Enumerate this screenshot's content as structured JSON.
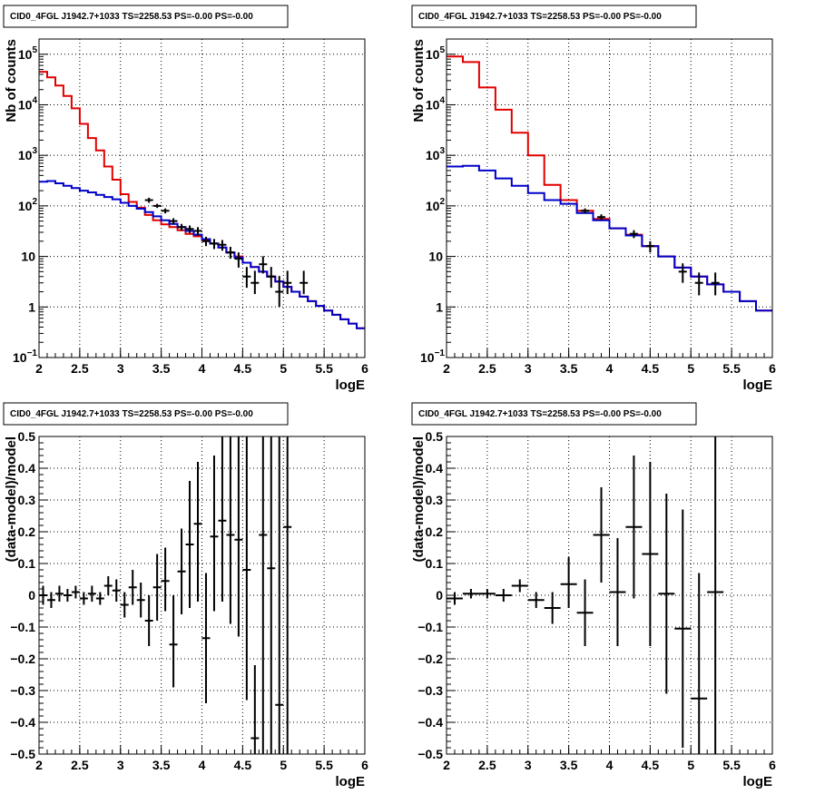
{
  "chart_data": [
    {
      "type": "line",
      "title": "CID0_4FGL J1942.7+1033 TS=2258.53 PS=-0.00 PS=-0.00",
      "xlabel": "logE",
      "ylabel": "Nb of counts",
      "xlim": [
        2,
        6
      ],
      "ylim": [
        0.1,
        200000
      ],
      "log_y": true,
      "grid": true,
      "x_ticks": [
        "2",
        "2.5",
        "3",
        "3.5",
        "4",
        "4.5",
        "5",
        "5.5",
        "6"
      ],
      "y_ticks": [
        {
          "value": 0.1,
          "label": "10",
          "sup": "−1"
        },
        {
          "value": 1,
          "label": "1",
          "sup": ""
        },
        {
          "value": 10,
          "label": "10",
          "sup": ""
        },
        {
          "value": 100,
          "label": "10",
          "sup": "2"
        },
        {
          "value": 1000,
          "label": "10",
          "sup": "3"
        },
        {
          "value": 10000,
          "label": "10",
          "sup": "4"
        },
        {
          "value": 100000,
          "label": "10",
          "sup": "5"
        }
      ],
      "bin_edges": [
        2.0,
        2.1,
        2.2,
        2.3,
        2.4,
        2.5,
        2.6,
        2.7,
        2.8,
        2.9,
        3.0,
        3.1,
        3.2,
        3.3,
        3.4,
        3.5,
        3.6,
        3.7,
        3.8,
        3.9,
        4.0,
        4.1,
        4.2,
        4.3,
        4.4,
        4.5,
        4.6,
        4.7,
        4.8,
        4.9,
        5.0,
        5.1,
        5.2,
        5.3,
        5.4,
        5.5,
        5.6,
        5.7,
        5.8,
        5.9,
        6.0
      ],
      "series": [
        {
          "color": "#e00000",
          "style": "step",
          "values": [
            45000,
            35000,
            24000,
            15000,
            8500,
            4200,
            2200,
            1250,
            600,
            330,
            170,
            120,
            92,
            66,
            52,
            43,
            38,
            33,
            28,
            25,
            21,
            18,
            15,
            12,
            10,
            7.5,
            6.2,
            5.0,
            4.0,
            3.2,
            2.5,
            2.0,
            1.6,
            1.3,
            1.05,
            0.85,
            0.7,
            0.57,
            0.47,
            0.38
          ]
        },
        {
          "color": "#0000c8",
          "style": "step",
          "values": [
            300,
            310,
            280,
            250,
            225,
            200,
            185,
            165,
            150,
            135,
            115,
            100,
            88,
            75,
            62,
            52,
            44,
            38,
            32,
            27,
            22,
            18,
            15,
            12,
            9.5,
            7.5,
            6.2,
            5.0,
            4.0,
            3.2,
            2.5,
            2.0,
            1.6,
            1.3,
            1.05,
            0.85,
            0.7,
            0.57,
            0.47,
            0.38
          ]
        },
        {
          "color": "#000000",
          "style": "errorbar",
          "x": [
            3.35,
            3.45,
            3.55,
            3.65,
            3.75,
            3.85,
            3.95,
            4.05,
            4.15,
            4.25,
            4.35,
            4.45,
            4.55,
            4.65,
            4.75,
            4.85,
            4.95,
            5.05,
            5.25
          ],
          "y": [
            130,
            100,
            80,
            50,
            38,
            35,
            32,
            20,
            18,
            17,
            12,
            9,
            4,
            3,
            7,
            4,
            2,
            3,
            3
          ],
          "yerr_lo": [
            115,
            91,
            71,
            43,
            32,
            29,
            26,
            16,
            14,
            13,
            9,
            6,
            2.4,
            1.8,
            4.6,
            2.4,
            1,
            1.8,
            1.8
          ],
          "yerr_hi": [
            145,
            110,
            89,
            57,
            44,
            41,
            38,
            24.5,
            22.2,
            21.1,
            15.5,
            12,
            6.2,
            5.2,
            10.1,
            6.2,
            4.1,
            5.2,
            5.2
          ]
        }
      ]
    },
    {
      "type": "line",
      "title": "CID0_4FGL J1942.7+1033 TS=2258.53 PS=-0.00 PS=-0.00",
      "xlabel": "logE",
      "ylabel": "Nb of counts",
      "xlim": [
        2,
        6
      ],
      "ylim": [
        0.1,
        200000
      ],
      "log_y": true,
      "grid": true,
      "x_ticks": [
        "2",
        "2.5",
        "3",
        "3.5",
        "4",
        "4.5",
        "5",
        "5.5",
        "6"
      ],
      "y_ticks": [
        {
          "value": 0.1,
          "label": "10",
          "sup": "−1"
        },
        {
          "value": 1,
          "label": "1",
          "sup": ""
        },
        {
          "value": 10,
          "label": "10",
          "sup": ""
        },
        {
          "value": 100,
          "label": "10",
          "sup": "2"
        },
        {
          "value": 1000,
          "label": "10",
          "sup": "3"
        },
        {
          "value": 10000,
          "label": "10",
          "sup": "4"
        },
        {
          "value": 100000,
          "label": "10",
          "sup": "5"
        }
      ],
      "bin_edges": [
        2.0,
        2.2,
        2.4,
        2.6,
        2.8,
        3.0,
        3.2,
        3.4,
        3.6,
        3.8,
        4.0,
        4.2,
        4.4,
        4.6,
        4.8,
        5.0,
        5.2,
        5.4,
        5.6,
        5.8,
        6.0
      ],
      "series": [
        {
          "color": "#e00000",
          "style": "step",
          "values": [
            90000,
            70000,
            22000,
            8000,
            2800,
            1000,
            260,
            130,
            80,
            55,
            36,
            27,
            16,
            10,
            6,
            4,
            2.8,
            2.0,
            1.3,
            0.85
          ]
        },
        {
          "color": "#0000c8",
          "style": "step",
          "values": [
            600,
            620,
            500,
            350,
            250,
            180,
            130,
            110,
            72,
            52,
            36,
            26,
            16,
            10,
            6,
            4,
            2.8,
            2.0,
            1.3,
            0.85
          ]
        },
        {
          "color": "#000000",
          "style": "errorbar",
          "x": [
            3.7,
            3.9,
            4.3,
            4.5,
            4.9,
            5.1,
            5.3
          ],
          "y": [
            80,
            60,
            28,
            16,
            5,
            3,
            3
          ],
          "yerr_lo": [
            71,
            52,
            23,
            12,
            3,
            1.7,
            1.7
          ],
          "yerr_hi": [
            89,
            68,
            33,
            20,
            7.3,
            4.8,
            4.8
          ]
        }
      ]
    },
    {
      "type": "scatter",
      "title": "CID0_4FGL J1942.7+1033 TS=2258.53 PS=-0.00 PS=-0.00",
      "xlabel": "logE",
      "ylabel": "(data-model)/model",
      "xlim": [
        2,
        6
      ],
      "ylim": [
        -0.5,
        0.5
      ],
      "log_y": false,
      "grid": true,
      "x_ticks": [
        "2",
        "2.5",
        "3",
        "3.5",
        "4",
        "4.5",
        "5",
        "5.5",
        "6"
      ],
      "y_ticks": [
        {
          "value": -0.5,
          "label": "−0.5",
          "sup": ""
        },
        {
          "value": -0.4,
          "label": "−0.4",
          "sup": ""
        },
        {
          "value": -0.3,
          "label": "−0.3",
          "sup": ""
        },
        {
          "value": -0.2,
          "label": "−0.2",
          "sup": ""
        },
        {
          "value": -0.1,
          "label": "−0.1",
          "sup": ""
        },
        {
          "value": 0,
          "label": "0",
          "sup": ""
        },
        {
          "value": 0.1,
          "label": "0.1",
          "sup": ""
        },
        {
          "value": 0.2,
          "label": "0.2",
          "sup": ""
        },
        {
          "value": 0.3,
          "label": "0.3",
          "sup": ""
        },
        {
          "value": 0.4,
          "label": "0.4",
          "sup": ""
        },
        {
          "value": 0.5,
          "label": "0.5",
          "sup": ""
        }
      ],
      "bin_width": 0.1,
      "series": [
        {
          "color": "#000000",
          "style": "errorbar",
          "x": [
            2.05,
            2.15,
            2.25,
            2.35,
            2.45,
            2.55,
            2.65,
            2.75,
            2.85,
            2.95,
            3.05,
            3.15,
            3.25,
            3.35,
            3.45,
            3.55,
            3.65,
            3.75,
            3.85,
            3.95,
            4.05,
            4.15,
            4.25,
            4.35,
            4.45,
            4.55,
            4.65,
            4.75,
            4.85,
            4.95,
            5.05
          ],
          "y": [
            0,
            -0.015,
            0.005,
            0,
            0.01,
            -0.01,
            0.005,
            -0.01,
            0.03,
            0.015,
            -0.03,
            0.025,
            -0.015,
            -0.08,
            0.025,
            0.045,
            -0.155,
            0.075,
            0.16,
            0.225,
            -0.135,
            0.185,
            0.235,
            0.19,
            0.175,
            0.08,
            -0.45,
            0.19,
            0.085,
            -0.345,
            0.215
          ],
          "yerr_lo": [
            -0.03,
            -0.04,
            -0.02,
            -0.02,
            -0.01,
            -0.03,
            -0.02,
            -0.03,
            0.0,
            -0.02,
            -0.07,
            -0.03,
            -0.07,
            -0.16,
            -0.08,
            -0.05,
            -0.29,
            -0.06,
            -0.04,
            -0.02,
            -0.34,
            -0.05,
            -0.02,
            -0.09,
            -0.13,
            -0.33,
            -0.5,
            -0.5,
            -0.5,
            -0.5,
            -0.5
          ],
          "yerr_hi": [
            0.03,
            0.01,
            0.03,
            0.02,
            0.03,
            0.01,
            0.03,
            0.01,
            0.06,
            0.05,
            0.01,
            0.08,
            0.04,
            0.0,
            0.13,
            0.15,
            0.0,
            0.21,
            0.36,
            0.42,
            0.07,
            0.44,
            0.5,
            0.5,
            0.5,
            0.5,
            -0.22,
            0.5,
            0.5,
            0.5,
            0.5
          ]
        }
      ]
    },
    {
      "type": "scatter",
      "title": "CID0_4FGL J1942.7+1033 TS=2258.53 PS=-0.00 PS=-0.00",
      "xlabel": "logE",
      "ylabel": "(data-model)/model",
      "xlim": [
        2,
        6
      ],
      "ylim": [
        -0.5,
        0.5
      ],
      "log_y": false,
      "grid": true,
      "x_ticks": [
        "2",
        "2.5",
        "3",
        "3.5",
        "4",
        "4.5",
        "5",
        "5.5",
        "6"
      ],
      "y_ticks": [
        {
          "value": -0.5,
          "label": "−0.5",
          "sup": ""
        },
        {
          "value": -0.4,
          "label": "−0.4",
          "sup": ""
        },
        {
          "value": -0.3,
          "label": "−0.3",
          "sup": ""
        },
        {
          "value": -0.2,
          "label": "−0.2",
          "sup": ""
        },
        {
          "value": -0.1,
          "label": "−0.1",
          "sup": ""
        },
        {
          "value": 0,
          "label": "0",
          "sup": ""
        },
        {
          "value": 0.1,
          "label": "0.1",
          "sup": ""
        },
        {
          "value": 0.2,
          "label": "0.2",
          "sup": ""
        },
        {
          "value": 0.3,
          "label": "0.3",
          "sup": ""
        },
        {
          "value": 0.4,
          "label": "0.4",
          "sup": ""
        },
        {
          "value": 0.5,
          "label": "0.5",
          "sup": ""
        }
      ],
      "bin_width": 0.2,
      "series": [
        {
          "color": "#000000",
          "style": "errorbar",
          "x": [
            2.1,
            2.3,
            2.5,
            2.7,
            2.9,
            3.1,
            3.3,
            3.5,
            3.7,
            3.9,
            4.1,
            4.3,
            4.5,
            4.7,
            4.9,
            5.1,
            5.3
          ],
          "y": [
            -0.01,
            0.005,
            0.005,
            0,
            0.03,
            -0.015,
            -0.04,
            0.035,
            -0.055,
            0.19,
            0.01,
            0.215,
            0.13,
            0.005,
            -0.105,
            -0.325,
            0.01
          ],
          "yerr_lo": [
            -0.03,
            -0.01,
            -0.01,
            -0.02,
            0.01,
            -0.04,
            -0.09,
            -0.04,
            -0.16,
            0.04,
            -0.16,
            -0.01,
            -0.16,
            -0.31,
            -0.48,
            -0.5,
            -0.5
          ],
          "yerr_hi": [
            0.01,
            0.02,
            0.02,
            0.02,
            0.05,
            0.01,
            0.01,
            0.12,
            0.05,
            0.34,
            0.18,
            0.44,
            0.42,
            0.32,
            0.27,
            0.07,
            0.5
          ]
        }
      ]
    }
  ]
}
